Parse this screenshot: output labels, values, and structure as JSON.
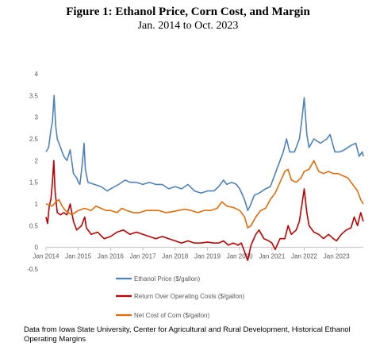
{
  "title": "Figure 1:  Ethanol Price, Corn Cost, and Margin",
  "subtitle": "Jan. 2014 to Oct. 2023",
  "footnote": "Data from Iowa State University, Center for Agricultural and Rural Development, Historical Ethanol Operating Margins",
  "colors": {
    "ethanol": "#4f81bd",
    "return": "#c00000",
    "corn": "#e46c0a",
    "axis": "#bfbfbf",
    "text": "#595959"
  },
  "chart_data": {
    "type": "line",
    "title": "Figure 1:  Ethanol Price, Corn Cost, and Margin",
    "subtitle": "Jan. 2014 to Oct. 2023",
    "xlabel": "",
    "ylabel": "",
    "ylim": [
      -0.5,
      4
    ],
    "yticks": [
      "4",
      "3.5",
      "3",
      "2.5",
      "2",
      "1.5",
      "1",
      "0.5",
      "0",
      "-0.5"
    ],
    "xticks": [
      "Jan 2014",
      "Jan 2015",
      "Jan 2016",
      "Jan 2017",
      "Jan 2018",
      "Jan 2019",
      "Jan 2020",
      "Jan 2021",
      "Jan 2022",
      "Jan 2023"
    ],
    "xlim": [
      2014.0,
      2023.83
    ],
    "grid": false,
    "legend_position": "bottom",
    "series": [
      {
        "name": "Ethanol Price ($/gallon)",
        "points": [
          [
            2014.0,
            2.2
          ],
          [
            2014.08,
            2.3
          ],
          [
            2014.15,
            2.7
          ],
          [
            2014.2,
            2.9
          ],
          [
            2014.25,
            3.5
          ],
          [
            2014.3,
            2.8
          ],
          [
            2014.35,
            2.5
          ],
          [
            2014.45,
            2.3
          ],
          [
            2014.55,
            2.1
          ],
          [
            2014.65,
            2.0
          ],
          [
            2014.75,
            2.25
          ],
          [
            2014.85,
            1.7
          ],
          [
            2014.95,
            1.6
          ],
          [
            2015.0,
            1.5
          ],
          [
            2015.05,
            1.45
          ],
          [
            2015.12,
            1.9
          ],
          [
            2015.18,
            2.4
          ],
          [
            2015.22,
            1.8
          ],
          [
            2015.3,
            1.5
          ],
          [
            2015.5,
            1.45
          ],
          [
            2015.7,
            1.4
          ],
          [
            2015.9,
            1.3
          ],
          [
            2016.0,
            1.35
          ],
          [
            2016.25,
            1.45
          ],
          [
            2016.45,
            1.55
          ],
          [
            2016.6,
            1.5
          ],
          [
            2016.8,
            1.5
          ],
          [
            2017.0,
            1.45
          ],
          [
            2017.2,
            1.5
          ],
          [
            2017.4,
            1.45
          ],
          [
            2017.6,
            1.45
          ],
          [
            2017.8,
            1.35
          ],
          [
            2018.0,
            1.4
          ],
          [
            2018.2,
            1.35
          ],
          [
            2018.4,
            1.45
          ],
          [
            2018.6,
            1.3
          ],
          [
            2018.8,
            1.25
          ],
          [
            2019.0,
            1.3
          ],
          [
            2019.2,
            1.3
          ],
          [
            2019.35,
            1.4
          ],
          [
            2019.5,
            1.55
          ],
          [
            2019.6,
            1.45
          ],
          [
            2019.75,
            1.5
          ],
          [
            2019.9,
            1.45
          ],
          [
            2020.0,
            1.35
          ],
          [
            2020.15,
            1.1
          ],
          [
            2020.25,
            0.85
          ],
          [
            2020.32,
            0.95
          ],
          [
            2020.45,
            1.2
          ],
          [
            2020.6,
            1.25
          ],
          [
            2020.8,
            1.35
          ],
          [
            2020.95,
            1.4
          ],
          [
            2021.05,
            1.6
          ],
          [
            2021.2,
            1.9
          ],
          [
            2021.35,
            2.2
          ],
          [
            2021.45,
            2.5
          ],
          [
            2021.55,
            2.2
          ],
          [
            2021.7,
            2.2
          ],
          [
            2021.85,
            2.5
          ],
          [
            2021.92,
            2.9
          ],
          [
            2022.0,
            3.45
          ],
          [
            2022.08,
            2.6
          ],
          [
            2022.15,
            2.3
          ],
          [
            2022.3,
            2.5
          ],
          [
            2022.5,
            2.4
          ],
          [
            2022.7,
            2.5
          ],
          [
            2022.8,
            2.6
          ],
          [
            2022.95,
            2.2
          ],
          [
            2023.1,
            2.2
          ],
          [
            2023.25,
            2.25
          ],
          [
            2023.45,
            2.35
          ],
          [
            2023.6,
            2.4
          ],
          [
            2023.7,
            2.1
          ],
          [
            2023.8,
            2.2
          ],
          [
            2023.83,
            2.1
          ]
        ]
      },
      {
        "name": "Return Over Operating Costs ($/gallon)",
        "points": [
          [
            2014.0,
            0.7
          ],
          [
            2014.05,
            0.55
          ],
          [
            2014.1,
            0.95
          ],
          [
            2014.15,
            1.1
          ],
          [
            2014.2,
            1.5
          ],
          [
            2014.24,
            2.0
          ],
          [
            2014.28,
            1.3
          ],
          [
            2014.35,
            0.8
          ],
          [
            2014.45,
            0.75
          ],
          [
            2014.55,
            0.8
          ],
          [
            2014.65,
            0.75
          ],
          [
            2014.75,
            1.0
          ],
          [
            2014.85,
            0.6
          ],
          [
            2014.95,
            0.4
          ],
          [
            2015.1,
            0.5
          ],
          [
            2015.2,
            0.7
          ],
          [
            2015.25,
            0.45
          ],
          [
            2015.4,
            0.3
          ],
          [
            2015.6,
            0.35
          ],
          [
            2015.8,
            0.2
          ],
          [
            2016.0,
            0.25
          ],
          [
            2016.2,
            0.35
          ],
          [
            2016.4,
            0.4
          ],
          [
            2016.6,
            0.3
          ],
          [
            2016.8,
            0.35
          ],
          [
            2017.0,
            0.3
          ],
          [
            2017.2,
            0.25
          ],
          [
            2017.4,
            0.2
          ],
          [
            2017.6,
            0.25
          ],
          [
            2017.8,
            0.2
          ],
          [
            2018.0,
            0.15
          ],
          [
            2018.2,
            0.1
          ],
          [
            2018.4,
            0.15
          ],
          [
            2018.6,
            0.1
          ],
          [
            2018.8,
            0.1
          ],
          [
            2019.0,
            0.12
          ],
          [
            2019.2,
            0.1
          ],
          [
            2019.35,
            0.1
          ],
          [
            2019.5,
            0.15
          ],
          [
            2019.65,
            0.05
          ],
          [
            2019.8,
            0.1
          ],
          [
            2019.95,
            0.05
          ],
          [
            2020.05,
            0.1
          ],
          [
            2020.15,
            -0.1
          ],
          [
            2020.25,
            -0.3
          ],
          [
            2020.35,
            0.05
          ],
          [
            2020.5,
            0.3
          ],
          [
            2020.6,
            0.4
          ],
          [
            2020.75,
            0.2
          ],
          [
            2020.9,
            0.15
          ],
          [
            2021.0,
            0.1
          ],
          [
            2021.1,
            -0.05
          ],
          [
            2021.25,
            0.2
          ],
          [
            2021.4,
            0.2
          ],
          [
            2021.5,
            0.5
          ],
          [
            2021.6,
            0.3
          ],
          [
            2021.75,
            0.4
          ],
          [
            2021.85,
            0.6
          ],
          [
            2021.93,
            1.0
          ],
          [
            2022.0,
            1.35
          ],
          [
            2022.08,
            0.8
          ],
          [
            2022.15,
            0.5
          ],
          [
            2022.3,
            0.35
          ],
          [
            2022.45,
            0.3
          ],
          [
            2022.6,
            0.2
          ],
          [
            2022.75,
            0.3
          ],
          [
            2022.9,
            0.2
          ],
          [
            2023.0,
            0.15
          ],
          [
            2023.15,
            0.3
          ],
          [
            2023.3,
            0.4
          ],
          [
            2023.45,
            0.45
          ],
          [
            2023.55,
            0.7
          ],
          [
            2023.65,
            0.5
          ],
          [
            2023.75,
            0.8
          ],
          [
            2023.83,
            0.6
          ]
        ]
      },
      {
        "name": "Net Cost of Corn ($/gallon)",
        "points": [
          [
            2014.0,
            1.0
          ],
          [
            2014.1,
            0.98
          ],
          [
            2014.2,
            0.95
          ],
          [
            2014.3,
            1.05
          ],
          [
            2014.4,
            1.1
          ],
          [
            2014.5,
            0.95
          ],
          [
            2014.6,
            0.85
          ],
          [
            2014.7,
            0.8
          ],
          [
            2014.8,
            0.75
          ],
          [
            2014.9,
            0.8
          ],
          [
            2015.0,
            0.85
          ],
          [
            2015.2,
            0.9
          ],
          [
            2015.4,
            0.85
          ],
          [
            2015.55,
            0.95
          ],
          [
            2015.7,
            0.9
          ],
          [
            2015.85,
            0.85
          ],
          [
            2016.0,
            0.85
          ],
          [
            2016.2,
            0.8
          ],
          [
            2016.35,
            0.9
          ],
          [
            2016.5,
            0.85
          ],
          [
            2016.7,
            0.8
          ],
          [
            2016.9,
            0.8
          ],
          [
            2017.1,
            0.85
          ],
          [
            2017.3,
            0.85
          ],
          [
            2017.5,
            0.85
          ],
          [
            2017.7,
            0.8
          ],
          [
            2017.9,
            0.82
          ],
          [
            2018.1,
            0.85
          ],
          [
            2018.3,
            0.88
          ],
          [
            2018.5,
            0.85
          ],
          [
            2018.7,
            0.8
          ],
          [
            2018.9,
            0.85
          ],
          [
            2019.1,
            0.85
          ],
          [
            2019.3,
            0.9
          ],
          [
            2019.45,
            1.05
          ],
          [
            2019.6,
            0.95
          ],
          [
            2019.8,
            0.92
          ],
          [
            2020.0,
            0.85
          ],
          [
            2020.15,
            0.7
          ],
          [
            2020.25,
            0.45
          ],
          [
            2020.35,
            0.5
          ],
          [
            2020.5,
            0.7
          ],
          [
            2020.65,
            0.85
          ],
          [
            2020.8,
            0.9
          ],
          [
            2020.95,
            1.1
          ],
          [
            2021.1,
            1.25
          ],
          [
            2021.25,
            1.5
          ],
          [
            2021.4,
            1.75
          ],
          [
            2021.5,
            1.8
          ],
          [
            2021.6,
            1.55
          ],
          [
            2021.75,
            1.5
          ],
          [
            2021.9,
            1.6
          ],
          [
            2022.0,
            1.75
          ],
          [
            2022.15,
            1.8
          ],
          [
            2022.3,
            2.0
          ],
          [
            2022.45,
            1.75
          ],
          [
            2022.6,
            1.7
          ],
          [
            2022.75,
            1.75
          ],
          [
            2022.9,
            1.7
          ],
          [
            2023.05,
            1.7
          ],
          [
            2023.2,
            1.65
          ],
          [
            2023.35,
            1.6
          ],
          [
            2023.5,
            1.45
          ],
          [
            2023.65,
            1.3
          ],
          [
            2023.75,
            1.1
          ],
          [
            2023.83,
            1.0
          ]
        ]
      }
    ]
  }
}
